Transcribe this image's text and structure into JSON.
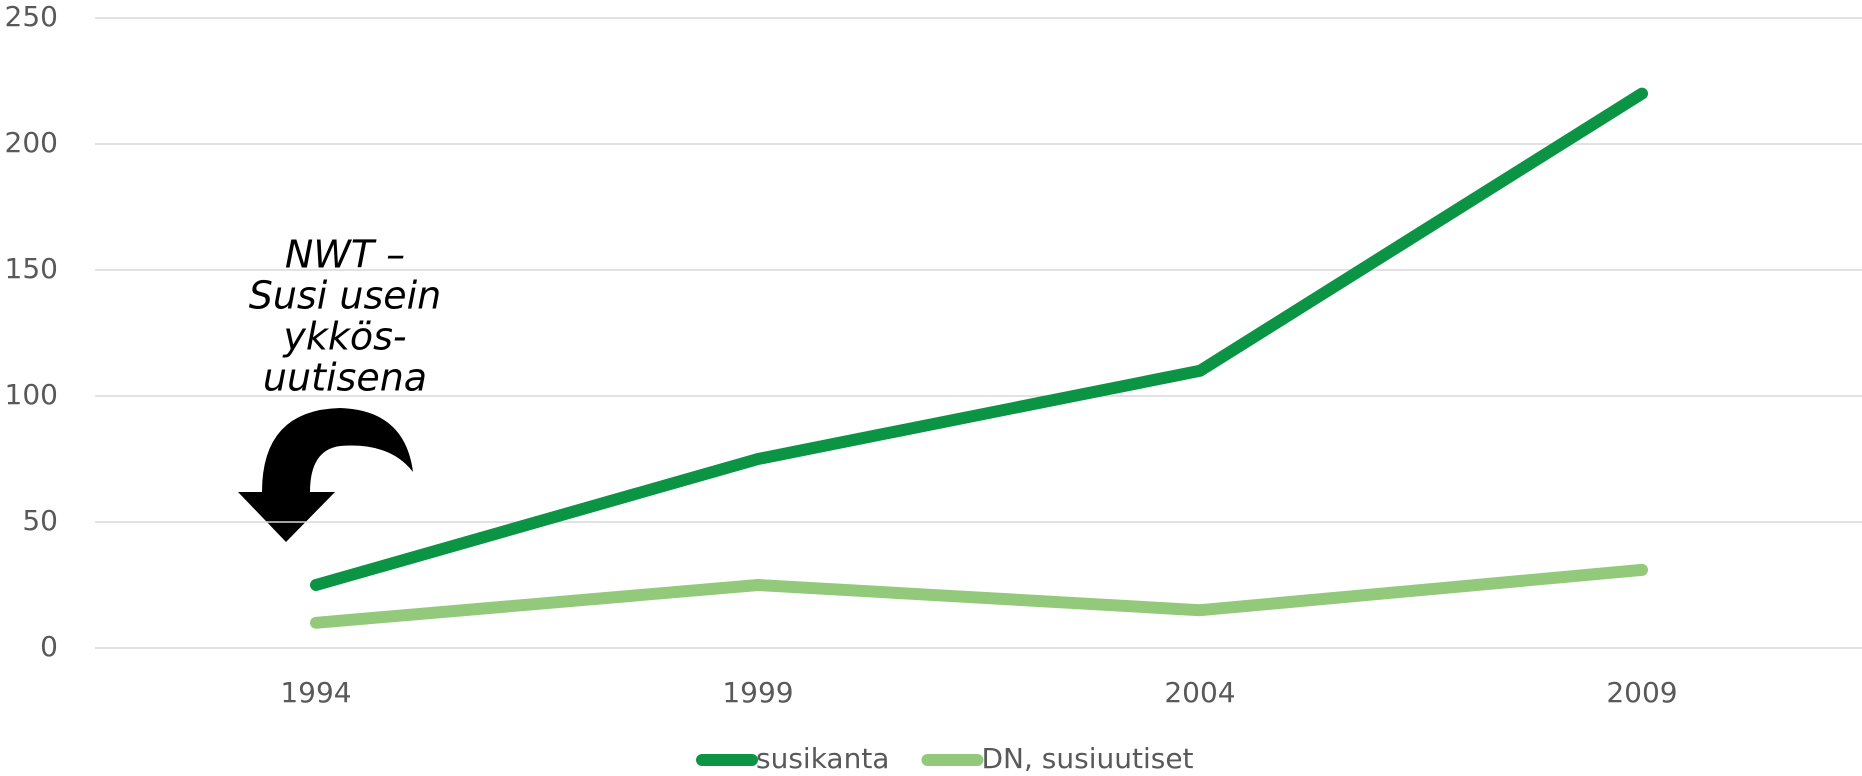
{
  "chart_data": {
    "type": "line",
    "categories": [
      "1994",
      "1999",
      "2004",
      "2009"
    ],
    "series": [
      {
        "name": "susikanta",
        "color": "#0a9444",
        "values": [
          25,
          75,
          110,
          220
        ]
      },
      {
        "name": "DN, susiuutiset",
        "color": "#92c97a",
        "values": [
          10,
          25,
          15,
          31
        ]
      }
    ],
    "ylim": [
      0,
      250
    ],
    "yticks": [
      0,
      50,
      100,
      150,
      200,
      250
    ],
    "grid": true,
    "annotation": [
      "NWT –",
      "Susi usein",
      "ykkös-",
      "uutisena"
    ],
    "legend": "bottom"
  }
}
